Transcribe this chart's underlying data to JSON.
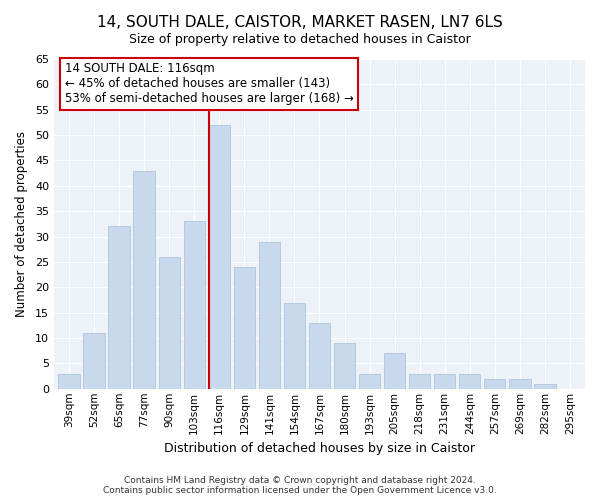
{
  "title": "14, SOUTH DALE, CAISTOR, MARKET RASEN, LN7 6LS",
  "subtitle": "Size of property relative to detached houses in Caistor",
  "xlabel": "Distribution of detached houses by size in Caistor",
  "ylabel": "Number of detached properties",
  "categories": [
    "39sqm",
    "52sqm",
    "65sqm",
    "77sqm",
    "90sqm",
    "103sqm",
    "116sqm",
    "129sqm",
    "141sqm",
    "154sqm",
    "167sqm",
    "180sqm",
    "193sqm",
    "205sqm",
    "218sqm",
    "231sqm",
    "244sqm",
    "257sqm",
    "269sqm",
    "282sqm",
    "295sqm"
  ],
  "values": [
    3,
    11,
    32,
    43,
    26,
    33,
    52,
    24,
    29,
    17,
    13,
    9,
    3,
    7,
    3,
    3,
    3,
    2,
    2,
    1,
    0
  ],
  "bar_color": "#c9d9ed",
  "bar_edge_color": "#aec4dc",
  "highlight_index": 6,
  "highlight_line_color": "#cc0000",
  "annotation_line1": "14 SOUTH DALE: 116sqm",
  "annotation_line2": "← 45% of detached houses are smaller (143)",
  "annotation_line3": "53% of semi-detached houses are larger (168) →",
  "annotation_box_color": "#ffffff",
  "annotation_box_edge_color": "#cc0000",
  "ylim": [
    0,
    65
  ],
  "yticks": [
    0,
    5,
    10,
    15,
    20,
    25,
    30,
    35,
    40,
    45,
    50,
    55,
    60,
    65
  ],
  "background_color": "#ffffff",
  "plot_bg_color": "#edf2f9",
  "grid_color": "#ffffff",
  "footnote": "Contains HM Land Registry data © Crown copyright and database right 2024.\nContains public sector information licensed under the Open Government Licence v3.0."
}
